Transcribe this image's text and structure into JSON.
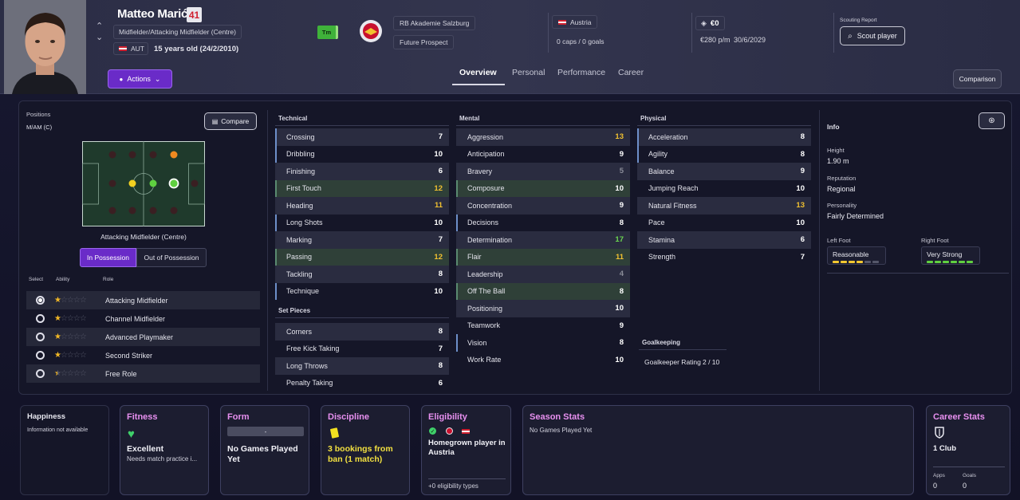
{
  "player": {
    "name": "Matteo Marić",
    "number": "41",
    "position": "Midfielder/Attacking Midfielder (Centre)",
    "nationality_code": "AUT",
    "age": "15 years old (24/2/2010)",
    "actions_label": "Actions",
    "tm_badge": "Tm",
    "club": "RB Akademie Salzburg",
    "status": "Future Prospect",
    "country": "Austria",
    "caps": "0 caps / 0 goals",
    "value": "€0",
    "wage": "€280 p/m",
    "contract_end": "30/6/2029",
    "scouting_report_label": "Scouting Report",
    "scout_button": "Scout player",
    "comparison_button": "Comparison"
  },
  "tabs": [
    "Overview",
    "Personal",
    "Performance",
    "Career"
  ],
  "positions": {
    "label": "Positions",
    "value": "M/AM (C)",
    "compare_label": "Compare",
    "role_caption": "Attacking Midfielder (Centre)",
    "in_possession": "In Possession",
    "out_of_possession": "Out of Possession",
    "col_select": "Select",
    "col_ability": "Ability",
    "col_role": "Role",
    "roles": [
      {
        "name": "Attacking Midfielder",
        "stars": 1,
        "selected": true
      },
      {
        "name": "Channel Midfielder",
        "stars": 1,
        "selected": false
      },
      {
        "name": "Advanced Playmaker",
        "stars": 1,
        "selected": false
      },
      {
        "name": "Second Striker",
        "stars": 1,
        "selected": false
      },
      {
        "name": "Free Role",
        "stars": 0.5,
        "selected": false
      }
    ]
  },
  "technical": {
    "title": "Technical",
    "rows": [
      {
        "name": "Crossing",
        "value": "7"
      },
      {
        "name": "Dribbling",
        "value": "10"
      },
      {
        "name": "Finishing",
        "value": "6"
      },
      {
        "name": "First Touch",
        "value": "12"
      },
      {
        "name": "Heading",
        "value": "11"
      },
      {
        "name": "Long Shots",
        "value": "10"
      },
      {
        "name": "Marking",
        "value": "7"
      },
      {
        "name": "Passing",
        "value": "12"
      },
      {
        "name": "Tackling",
        "value": "8"
      },
      {
        "name": "Technique",
        "value": "10"
      }
    ]
  },
  "set_pieces": {
    "title": "Set Pieces",
    "rows": [
      {
        "name": "Corners",
        "value": "8"
      },
      {
        "name": "Free Kick Taking",
        "value": "7"
      },
      {
        "name": "Long Throws",
        "value": "8"
      },
      {
        "name": "Penalty Taking",
        "value": "6"
      }
    ]
  },
  "mental": {
    "title": "Mental",
    "rows": [
      {
        "name": "Aggression",
        "value": "13"
      },
      {
        "name": "Anticipation",
        "value": "9"
      },
      {
        "name": "Bravery",
        "value": "5"
      },
      {
        "name": "Composure",
        "value": "10"
      },
      {
        "name": "Concentration",
        "value": "9"
      },
      {
        "name": "Decisions",
        "value": "8"
      },
      {
        "name": "Determination",
        "value": "17"
      },
      {
        "name": "Flair",
        "value": "11"
      },
      {
        "name": "Leadership",
        "value": "4"
      },
      {
        "name": "Off The Ball",
        "value": "8"
      },
      {
        "name": "Positioning",
        "value": "10"
      },
      {
        "name": "Teamwork",
        "value": "9"
      },
      {
        "name": "Vision",
        "value": "8"
      },
      {
        "name": "Work Rate",
        "value": "10"
      }
    ]
  },
  "physical": {
    "title": "Physical",
    "rows": [
      {
        "name": "Acceleration",
        "value": "8"
      },
      {
        "name": "Agility",
        "value": "8"
      },
      {
        "name": "Balance",
        "value": "9"
      },
      {
        "name": "Jumping Reach",
        "value": "10"
      },
      {
        "name": "Natural Fitness",
        "value": "13"
      },
      {
        "name": "Pace",
        "value": "10"
      },
      {
        "name": "Stamina",
        "value": "6"
      },
      {
        "name": "Strength",
        "value": "7"
      }
    ]
  },
  "goalkeeping": {
    "title": "Goalkeeping",
    "label": "Goalkeeper Rating",
    "value": "2 / 10"
  },
  "info": {
    "title": "Info",
    "height_label": "Height",
    "height": "1.90 m",
    "reputation_label": "Reputation",
    "reputation": "Regional",
    "personality_label": "Personality",
    "personality": "Fairly Determined",
    "left_foot_label": "Left Foot",
    "left_foot": "Reasonable",
    "left_foot_level": 4,
    "right_foot_label": "Right Foot",
    "right_foot": "Very Strong",
    "right_foot_level": 6
  },
  "cards": {
    "happiness": {
      "title": "Happiness",
      "text": "Information not available"
    },
    "fitness": {
      "title": "Fitness",
      "status": "Excellent",
      "note": "Needs match practice i..."
    },
    "form": {
      "title": "Form",
      "badge": "-",
      "text": "No Games Played Yet"
    },
    "discipline": {
      "title": "Discipline",
      "text": "3 bookings from ban (1 match)"
    },
    "eligibility": {
      "title": "Eligibility",
      "text": "Homegrown player in Austria",
      "footer": "+0 eligibility types"
    },
    "season_stats": {
      "title": "Season Stats",
      "text": "No Games Played Yet"
    },
    "career_stats": {
      "title": "Career Stats",
      "clubs": "1 Club",
      "apps_label": "Apps",
      "apps": "0",
      "goals_label": "Goals",
      "goals": "0"
    }
  },
  "colors": {
    "accent": "#7b2fd6",
    "highlight_yellow": "#f0c030",
    "highlight_green": "#6bd650",
    "card_title": "#e890f0"
  }
}
